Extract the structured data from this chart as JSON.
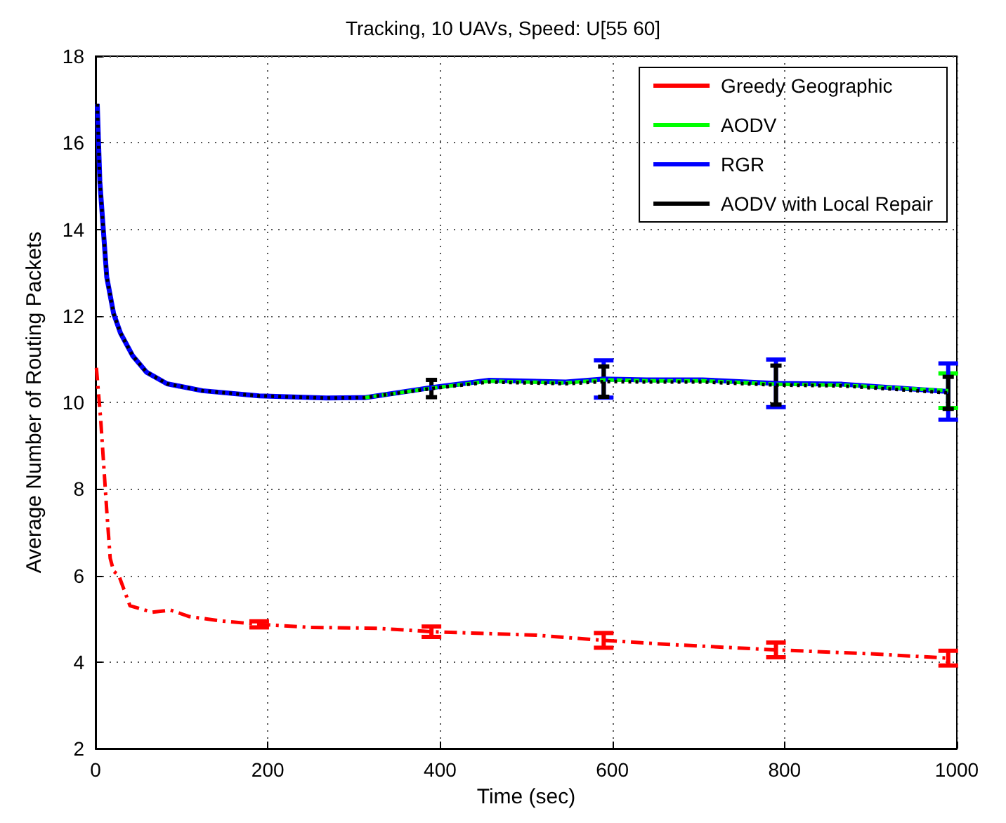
{
  "chart_data": {
    "type": "line",
    "title": "Tracking, 10 UAVs, Speed: U[55 60]",
    "xlabel": "Time (sec)",
    "ylabel": "Average Number of Routing Packets",
    "xlim": [
      0,
      1000
    ],
    "xticks": [
      0,
      200,
      400,
      600,
      800,
      1000
    ],
    "ylim": [
      2,
      18
    ],
    "yticks": [
      2,
      4,
      6,
      8,
      10,
      12,
      14,
      16,
      18
    ],
    "grid": true,
    "legend": "top right",
    "marker": "none",
    "series": [
      {
        "name": "Greedy Geographic",
        "color": "#ff0000",
        "line_style": "dashdot",
        "x": [
          1,
          6,
          13,
          17,
          21,
          27,
          40,
          66,
          87,
          109,
          146,
          190,
          249,
          327,
          390,
          512,
          590,
          672,
          790,
          900,
          990
        ],
        "values": [
          10.8,
          9.6,
          7.5,
          6.4,
          6.1,
          6.0,
          5.3,
          5.15,
          5.2,
          5.05,
          4.95,
          4.87,
          4.8,
          4.78,
          4.7,
          4.62,
          4.5,
          4.4,
          4.28,
          4.19,
          4.09
        ],
        "errors": [
          null,
          null,
          null,
          null,
          null,
          null,
          null,
          null,
          null,
          null,
          null,
          0.07,
          null,
          null,
          0.12,
          null,
          0.17,
          null,
          0.17,
          null,
          0.17
        ]
      },
      {
        "name": "AODV",
        "color": "#00ff00",
        "line_style": "dashed",
        "x": [
          313,
          390,
          457,
          546,
          590,
          640,
          705,
          790,
          867,
          990
        ],
        "values": [
          10.11,
          10.33,
          10.49,
          10.45,
          10.52,
          10.5,
          10.5,
          10.42,
          10.4,
          10.27
        ],
        "errors": [
          null,
          null,
          null,
          null,
          null,
          null,
          null,
          null,
          null,
          0.4
        ]
      },
      {
        "name": "RGR",
        "color": "#0000ff",
        "line_style": "solid",
        "x": [
          2,
          5,
          9,
          13,
          21,
          29,
          43,
          59,
          83,
          124,
          190,
          268,
          313,
          390,
          457,
          546,
          590,
          640,
          705,
          790,
          867,
          990
        ],
        "values": [
          16.9,
          15.1,
          14.0,
          12.9,
          12.05,
          11.6,
          11.08,
          10.7,
          10.43,
          10.27,
          10.15,
          10.1,
          10.11,
          10.34,
          10.51,
          10.47,
          10.54,
          10.52,
          10.52,
          10.44,
          10.42,
          10.25
        ],
        "errors": [
          null,
          null,
          null,
          null,
          null,
          null,
          null,
          null,
          null,
          null,
          null,
          null,
          null,
          null,
          null,
          null,
          0.43,
          null,
          null,
          0.55,
          null,
          0.65
        ]
      },
      {
        "name": "AODV with Local Repair",
        "color": "#000000",
        "line_style": "dotted",
        "x": [
          2,
          5,
          9,
          13,
          21,
          29,
          43,
          59,
          83,
          124,
          190,
          268,
          313,
          390,
          457,
          546,
          590,
          640,
          705,
          790,
          867,
          990
        ],
        "values": [
          16.9,
          15.1,
          14.0,
          12.9,
          12.05,
          11.6,
          11.08,
          10.7,
          10.43,
          10.27,
          10.15,
          10.1,
          10.11,
          10.32,
          10.47,
          10.43,
          10.48,
          10.47,
          10.47,
          10.4,
          10.38,
          10.22
        ],
        "errors": [
          null,
          null,
          null,
          null,
          null,
          null,
          null,
          null,
          null,
          null,
          null,
          null,
          null,
          0.2,
          null,
          null,
          0.35,
          null,
          null,
          0.45,
          null,
          0.37
        ]
      }
    ]
  }
}
